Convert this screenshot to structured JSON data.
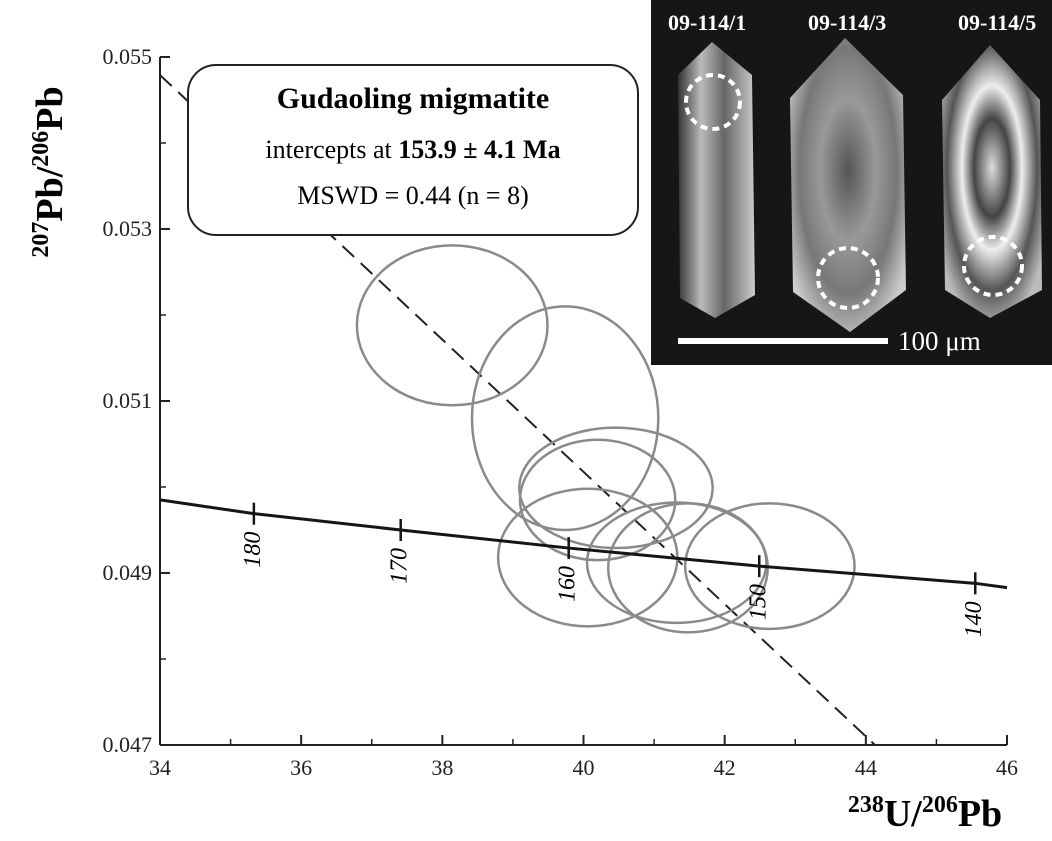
{
  "chart_data": {
    "type": "concordia",
    "x_label": [
      "238",
      "U/",
      "206",
      "Pb"
    ],
    "y_label": [
      "207",
      "Pb",
      "/",
      "206",
      "Pb"
    ],
    "xlim": [
      34,
      46
    ],
    "ylim": [
      0.047,
      0.055
    ],
    "xticks": [
      34,
      36,
      38,
      40,
      42,
      44,
      46
    ],
    "xminor": [
      35,
      37,
      39,
      41,
      43,
      45
    ],
    "yticks": [
      0.047,
      0.049,
      0.051,
      0.053,
      0.055
    ],
    "yminor": [
      0.048,
      0.05,
      0.052,
      0.054
    ],
    "annotation": {
      "title": "Gudaoling migmatite",
      "prefix": "intercepts at ",
      "age": "153.9 ± 4.1 Ma",
      "mswd": "MSWD = 0.44 (n = 8)"
    },
    "ellipses": {
      "color": "#8a8a8a",
      "x": [
        38.14,
        39.74,
        40.46,
        40.2,
        40.06,
        41.32,
        41.48,
        42.64
      ],
      "y": [
        0.05188,
        0.0508,
        0.04999,
        0.04985,
        0.04918,
        0.04912,
        0.04906,
        0.04908
      ],
      "x_err": [
        1.35,
        1.32,
        1.37,
        1.1,
        1.27,
        1.27,
        1.13,
        1.2
      ],
      "y_err": [
        0.00093,
        0.0013,
        0.0007,
        0.0007,
        0.0008,
        0.0007,
        0.00075,
        0.00073
      ]
    },
    "concordia": {
      "color": "#151515",
      "x": [
        34,
        35.33,
        37.41,
        39.79,
        42.49,
        45.55,
        46
      ],
      "y": [
        0.04985,
        0.04969,
        0.0495,
        0.04929,
        0.04908,
        0.04888,
        0.04883
      ]
    },
    "age_ticks": {
      "x": [
        35.33,
        37.41,
        39.79,
        42.49,
        45.55
      ],
      "ages": [
        180,
        170,
        160,
        150,
        140
      ]
    },
    "discordia": {
      "color": "#222222",
      "x": [
        34,
        44.13
      ],
      "y": [
        0.05479,
        0.047
      ]
    },
    "inset": {
      "labels": [
        "09-114/1",
        "09-114/3",
        "09-114/5"
      ],
      "scale_label": "100 μm"
    }
  }
}
